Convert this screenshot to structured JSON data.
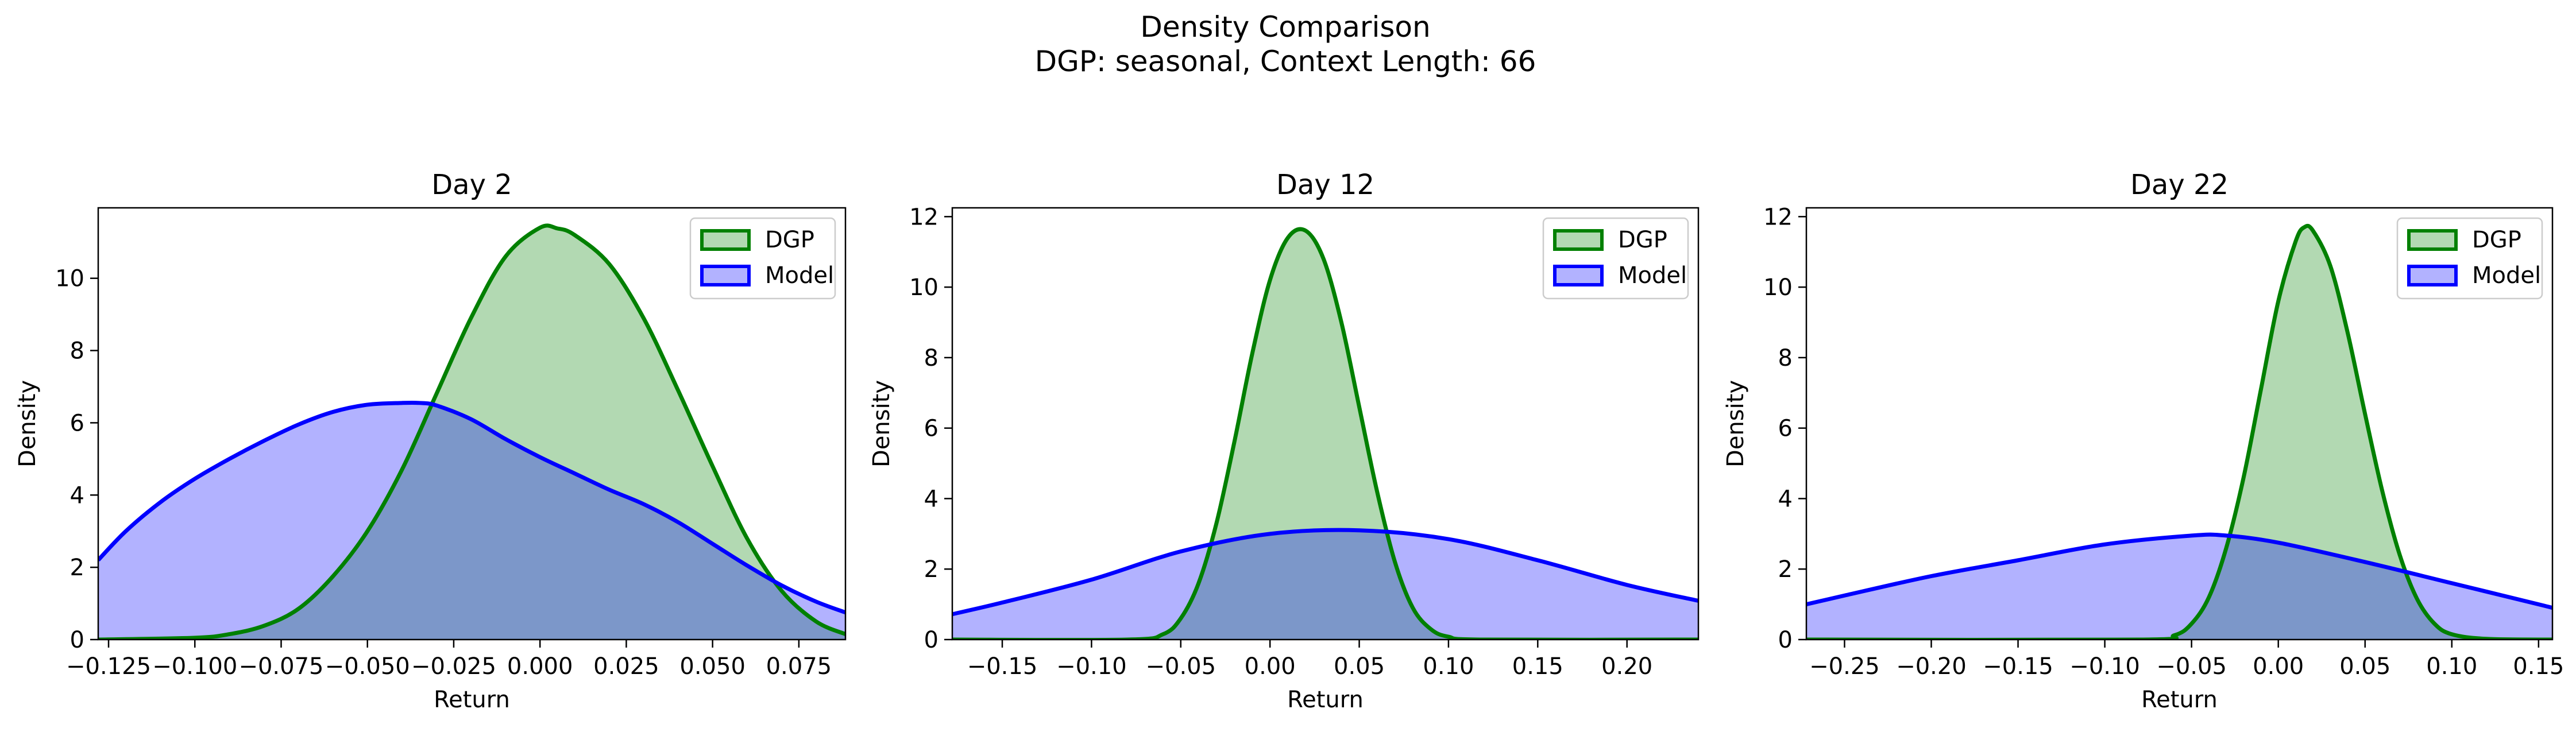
{
  "figure": {
    "title_line1": "Density Comparison",
    "title_line2": "DGP: seasonal, Context Length: 66"
  },
  "colors": {
    "dgp_line": "#008000",
    "dgp_fill": "#b2d8b2",
    "model_line": "#0000ff",
    "model_fill": "#b2b2ff",
    "overlap_fill": "#7f9ac8"
  },
  "chart_data": [
    {
      "type": "area",
      "title": "Day 2",
      "xlabel": "Return",
      "ylabel": "Density",
      "xlim": [
        -0.128,
        0.0885
      ],
      "ylim": [
        0,
        11.95
      ],
      "xticks": [
        -0.125,
        -0.1,
        -0.075,
        -0.05,
        -0.025,
        0.0,
        0.025,
        0.05,
        0.075
      ],
      "xtick_labels": [
        "−0.125",
        "−0.100",
        "−0.075",
        "−0.050",
        "−0.025",
        "0.000",
        "0.025",
        "0.050",
        "0.075"
      ],
      "yticks": [
        0,
        2,
        4,
        6,
        8,
        10
      ],
      "ytick_labels": [
        "0",
        "2",
        "4",
        "6",
        "8",
        "10"
      ],
      "legend": {
        "position": "top-right",
        "entries": [
          "DGP",
          "Model"
        ]
      },
      "grid": false,
      "series": [
        {
          "name": "DGP",
          "x": [
            -0.128,
            -0.1,
            -0.09,
            -0.08,
            -0.07,
            -0.06,
            -0.05,
            -0.04,
            -0.03,
            -0.02,
            -0.01,
            0.0,
            0.005,
            0.01,
            0.02,
            0.03,
            0.04,
            0.05,
            0.06,
            0.07,
            0.08,
            0.0885
          ],
          "y": [
            0.0,
            0.05,
            0.15,
            0.38,
            0.85,
            1.75,
            3.0,
            4.7,
            6.8,
            8.9,
            10.6,
            11.4,
            11.38,
            11.2,
            10.4,
            8.9,
            6.9,
            4.8,
            2.8,
            1.35,
            0.5,
            0.15
          ]
        },
        {
          "name": "Model",
          "x": [
            -0.128,
            -0.12,
            -0.11,
            -0.1,
            -0.09,
            -0.08,
            -0.07,
            -0.06,
            -0.05,
            -0.04,
            -0.035,
            -0.03,
            -0.02,
            -0.01,
            0.0,
            0.01,
            0.02,
            0.03,
            0.04,
            0.05,
            0.06,
            0.07,
            0.08,
            0.0885
          ],
          "y": [
            2.2,
            3.0,
            3.8,
            4.45,
            5.0,
            5.5,
            5.95,
            6.3,
            6.5,
            6.55,
            6.55,
            6.48,
            6.1,
            5.55,
            5.05,
            4.6,
            4.15,
            3.75,
            3.25,
            2.65,
            2.05,
            1.5,
            1.05,
            0.75
          ]
        }
      ]
    },
    {
      "type": "area",
      "title": "Day 12",
      "xlabel": "Return",
      "ylabel": "Density",
      "xlim": [
        -0.178,
        0.24
      ],
      "ylim": [
        0,
        12.25
      ],
      "xticks": [
        -0.15,
        -0.1,
        -0.05,
        0.0,
        0.05,
        0.1,
        0.15,
        0.2
      ],
      "xtick_labels": [
        "−0.15",
        "−0.10",
        "−0.05",
        "0.00",
        "0.05",
        "0.10",
        "0.15",
        "0.20"
      ],
      "yticks": [
        0,
        2,
        4,
        6,
        8,
        10,
        12
      ],
      "ytick_labels": [
        "0",
        "2",
        "4",
        "6",
        "8",
        "10",
        "12"
      ],
      "legend": {
        "position": "top-right",
        "entries": [
          "DGP",
          "Model"
        ]
      },
      "grid": false,
      "series": [
        {
          "name": "DGP",
          "x": [
            -0.178,
            -0.08,
            -0.06,
            -0.05,
            -0.04,
            -0.03,
            -0.02,
            -0.01,
            0.0,
            0.01,
            0.02,
            0.03,
            0.04,
            0.05,
            0.06,
            0.07,
            0.08,
            0.09,
            0.1,
            0.12,
            0.24
          ],
          "y": [
            0.0,
            0.0,
            0.15,
            0.6,
            1.6,
            3.3,
            5.6,
            8.1,
            10.2,
            11.4,
            11.6,
            10.8,
            9.0,
            6.6,
            4.2,
            2.2,
            0.9,
            0.3,
            0.08,
            0.0,
            0.0
          ],
          "peak_at": 0.02
        },
        {
          "name": "Model",
          "x": [
            -0.178,
            -0.15,
            -0.1,
            -0.05,
            0.0,
            0.05,
            0.1,
            0.15,
            0.2,
            0.24
          ],
          "y": [
            0.72,
            1.05,
            1.7,
            2.5,
            3.0,
            3.1,
            2.85,
            2.25,
            1.55,
            1.1
          ]
        }
      ]
    },
    {
      "type": "area",
      "title": "Day 22",
      "xlabel": "Return",
      "ylabel": "Density",
      "xlim": [
        -0.272,
        0.158
      ],
      "ylim": [
        0,
        12.25
      ],
      "xticks": [
        -0.25,
        -0.2,
        -0.15,
        -0.1,
        -0.05,
        0.0,
        0.05,
        0.1,
        0.15
      ],
      "xtick_labels": [
        "−0.25",
        "−0.20",
        "−0.15",
        "−0.10",
        "−0.05",
        "0.00",
        "0.05",
        "0.10",
        "0.15"
      ],
      "yticks": [
        0,
        2,
        4,
        6,
        8,
        10,
        12
      ],
      "ytick_labels": [
        "0",
        "2",
        "4",
        "6",
        "8",
        "10",
        "12"
      ],
      "legend": {
        "position": "top-right",
        "entries": [
          "DGP",
          "Model"
        ]
      },
      "grid": false,
      "series": [
        {
          "name": "DGP",
          "x": [
            -0.272,
            -0.08,
            -0.06,
            -0.05,
            -0.04,
            -0.03,
            -0.02,
            -0.01,
            0.0,
            0.01,
            0.015,
            0.02,
            0.03,
            0.04,
            0.05,
            0.06,
            0.07,
            0.08,
            0.09,
            0.1,
            0.12,
            0.158
          ],
          "y": [
            0.0,
            0.0,
            0.12,
            0.45,
            1.2,
            2.6,
            4.6,
            7.1,
            9.6,
            11.3,
            11.7,
            11.6,
            10.6,
            8.7,
            6.4,
            4.2,
            2.4,
            1.15,
            0.45,
            0.15,
            0.02,
            0.0
          ]
        },
        {
          "name": "Model",
          "x": [
            -0.272,
            -0.25,
            -0.2,
            -0.15,
            -0.1,
            -0.05,
            -0.03,
            0.0,
            0.05,
            0.1,
            0.15,
            0.158
          ],
          "y": [
            1.0,
            1.25,
            1.8,
            2.25,
            2.7,
            2.95,
            2.95,
            2.75,
            2.2,
            1.6,
            1.0,
            0.9
          ]
        }
      ]
    }
  ]
}
